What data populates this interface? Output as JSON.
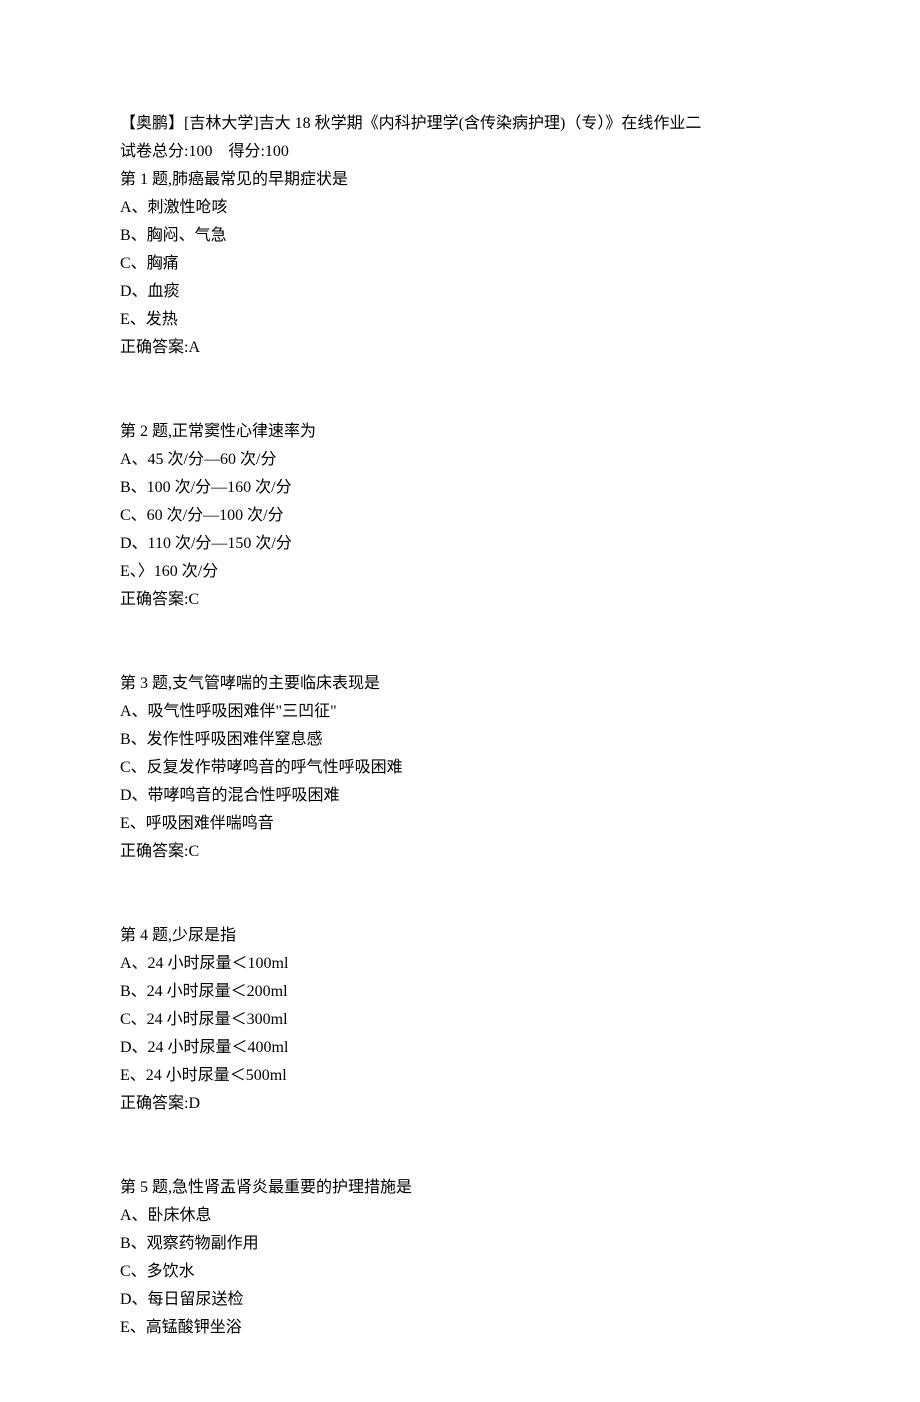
{
  "font_family": "SimSun",
  "font_size_pt": 12,
  "text_color": "#000000",
  "background_color": "#ffffff",
  "header": {
    "title": "【奥鹏】[吉林大学]吉大 18 秋学期《内科护理学(含传染病护理)（专）》在线作业二",
    "score_line": "试卷总分:100    得分:100"
  },
  "questions": [
    {
      "prompt": "第 1 题,肺癌最常见的早期症状是",
      "options": [
        "A、刺激性呛咳",
        "B、胸闷、气急",
        "C、胸痛",
        "D、血痰",
        "E、发热"
      ],
      "answer": "正确答案:A"
    },
    {
      "prompt": "第 2 题,正常窦性心律速率为",
      "options": [
        "A、45 次/分—60 次/分",
        "B、100 次/分—160 次/分",
        "C、60 次/分—100 次/分",
        "D、110 次/分—150 次/分",
        "E、〉160 次/分"
      ],
      "answer": "正确答案:C"
    },
    {
      "prompt": "第 3 题,支气管哮喘的主要临床表现是",
      "options": [
        "A、吸气性呼吸困难伴\"三凹征\"",
        "B、发作性呼吸困难伴窒息感",
        "C、反复发作带哮鸣音的呼气性呼吸困难",
        "D、带哮鸣音的混合性呼吸困难",
        "E、呼吸困难伴喘鸣音"
      ],
      "answer": "正确答案:C"
    },
    {
      "prompt": "第 4 题,少尿是指",
      "options": [
        "A、24 小时尿量＜100ml",
        "B、24 小时尿量＜200ml",
        "C、24 小时尿量＜300ml",
        "D、24 小时尿量＜400ml",
        "E、24 小时尿量＜500ml"
      ],
      "answer": "正确答案:D"
    },
    {
      "prompt": "第 5 题,急性肾盂肾炎最重要的护理措施是",
      "options": [
        "A、卧床休息",
        "B、观察药物副作用",
        "C、多饮水",
        "D、每日留尿送检",
        "E、高锰酸钾坐浴"
      ],
      "answer": null
    }
  ]
}
